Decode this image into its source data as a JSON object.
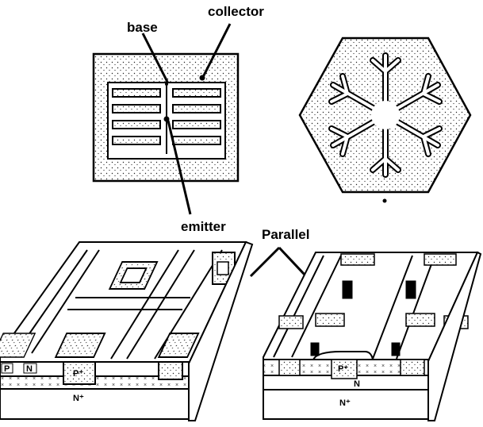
{
  "labels": {
    "base": "base",
    "collector": "collector",
    "emitter": "emitter",
    "parallel": "Parallel"
  },
  "region_labels": {
    "left_p": "P",
    "left_n": "N",
    "left_p_plus": "P⁺",
    "left_n_plus": "N⁺",
    "right_p_plus": "P⁺",
    "right_n": "N",
    "right_n_plus": "N⁺"
  }
}
